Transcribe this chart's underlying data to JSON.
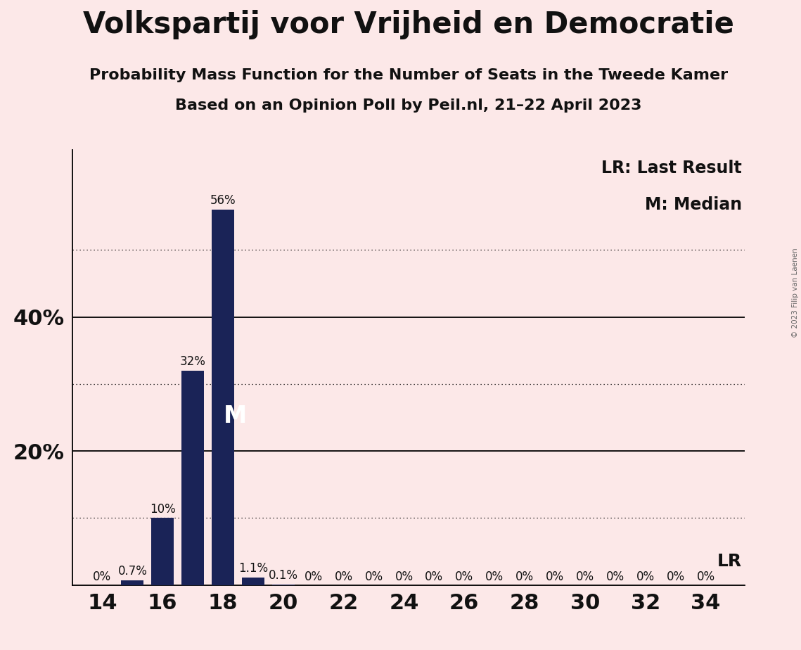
{
  "title": "Volkspartij voor Vrijheid en Democratie",
  "subtitle1": "Probability Mass Function for the Number of Seats in the Tweede Kamer",
  "subtitle2": "Based on an Opinion Poll by Peil.nl, 21–22 April 2023",
  "copyright": "© 2023 Filip van Laenen",
  "background_color": "#fce8e8",
  "bar_color": "#1a2357",
  "seats": [
    14,
    15,
    16,
    17,
    18,
    19,
    20,
    21,
    22,
    23,
    24,
    25,
    26,
    27,
    28,
    29,
    30,
    31,
    32,
    33,
    34
  ],
  "probabilities": [
    0.0,
    0.007,
    0.1,
    0.32,
    0.56,
    0.011,
    0.001,
    0.0,
    0.0,
    0.0,
    0.0,
    0.0,
    0.0,
    0.0,
    0.0,
    0.0,
    0.0,
    0.0,
    0.0,
    0.0,
    0.0
  ],
  "bar_labels": [
    "0%",
    "0.7%",
    "10%",
    "32%",
    "56%",
    "1.1%",
    "0.1%",
    "0%",
    "0%",
    "0%",
    "0%",
    "0%",
    "0%",
    "0%",
    "0%",
    "0%",
    "0%",
    "0%",
    "0%",
    "0%",
    "0%"
  ],
  "xtick_labels": [
    "14",
    "16",
    "18",
    "20",
    "22",
    "24",
    "26",
    "28",
    "30",
    "32",
    "34"
  ],
  "xtick_positions": [
    14,
    16,
    18,
    20,
    22,
    24,
    26,
    28,
    30,
    32,
    34
  ],
  "ytick_positions": [
    0.2,
    0.4
  ],
  "ytick_labels": [
    "20%",
    "40%"
  ],
  "ylim": [
    0,
    0.65
  ],
  "xlim": [
    13.0,
    35.3
  ],
  "solid_gridlines": [
    0.0,
    0.2,
    0.4
  ],
  "dotted_gridlines": [
    0.1,
    0.3,
    0.5
  ],
  "median_seat": 18,
  "lr_seat": 19,
  "lr_label": "LR",
  "lr_legend": "LR: Last Result",
  "m_legend": "M: Median",
  "median_label": "M",
  "title_fontsize": 30,
  "subtitle_fontsize": 16,
  "axis_tick_fontsize": 22,
  "bar_label_fontsize": 12,
  "legend_fontsize": 17,
  "median_label_fontsize": 24
}
